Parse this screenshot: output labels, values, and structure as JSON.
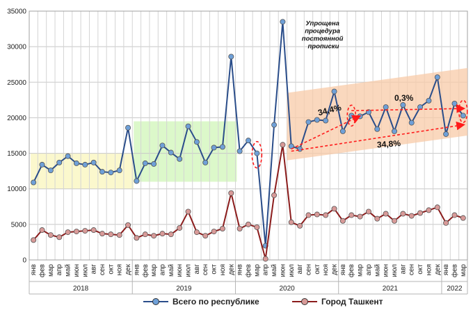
{
  "chart_data": {
    "type": "line",
    "title": "",
    "xlabel": "",
    "ylabel": "",
    "ylim": [
      0,
      35000
    ],
    "yticks": [
      0,
      5000,
      10000,
      15000,
      20000,
      25000,
      30000,
      35000
    ],
    "ytick_labels": [
      "0",
      "5000",
      "10000",
      "15000",
      "20000",
      "25000",
      "30000",
      "35000"
    ],
    "grid": true,
    "legend_position": "bottom-center",
    "categories": [
      "янв",
      "фев",
      "мар",
      "апр",
      "май",
      "июн",
      "июл",
      "авг",
      "сен",
      "окт",
      "ноя",
      "дек",
      "янв",
      "фев",
      "мар",
      "апр",
      "май",
      "июн",
      "июл",
      "авг",
      "сен",
      "окт",
      "ноя",
      "дек",
      "янв",
      "фев",
      "мар",
      "апр",
      "май",
      "июн",
      "июл",
      "авг",
      "сен",
      "окт",
      "ноя",
      "дек",
      "янв",
      "фев",
      "мар",
      "апр",
      "май",
      "июн",
      "июл",
      "авг",
      "сен",
      "окт",
      "ноя",
      "дек",
      "янв",
      "фев",
      "мар"
    ],
    "years": [
      {
        "label": "2018",
        "start": 0,
        "end": 11
      },
      {
        "label": "2019",
        "start": 12,
        "end": 23
      },
      {
        "label": "2020",
        "start": 24,
        "end": 35
      },
      {
        "label": "2021",
        "start": 36,
        "end": 47
      },
      {
        "label": "2022",
        "start": 48,
        "end": 50
      }
    ],
    "series": [
      {
        "name": "Всего по республике",
        "color": "#2a4d8a",
        "marker_color": "#6fa0d8",
        "values": [
          10900,
          13400,
          12600,
          13700,
          14600,
          13600,
          13400,
          13700,
          12400,
          12300,
          12600,
          18600,
          11100,
          13600,
          13500,
          16100,
          15100,
          14200,
          18800,
          16600,
          13700,
          15800,
          15900,
          28600,
          15300,
          16800,
          15000,
          2000,
          19000,
          33500,
          16000,
          15600,
          19400,
          19700,
          19600,
          23700,
          18100,
          20300,
          20200,
          20800,
          18400,
          21500,
          18100,
          21800,
          19300,
          21500,
          22400,
          25700,
          17700,
          22000,
          20300
        ]
      },
      {
        "name": "Город Ташкент",
        "color": "#8b1c1c",
        "marker_color": "#d89a98",
        "values": [
          2800,
          4200,
          3500,
          3200,
          3900,
          4000,
          4100,
          4200,
          3700,
          3600,
          3500,
          4900,
          3100,
          3600,
          3400,
          3700,
          3600,
          4500,
          6800,
          3900,
          3400,
          4000,
          4400,
          9400,
          4400,
          5000,
          4600,
          150,
          9100,
          16200,
          5300,
          4800,
          6300,
          6400,
          6300,
          7200,
          5500,
          6300,
          6100,
          6800,
          5800,
          6500,
          5500,
          6500,
          6200,
          6600,
          7000,
          7400,
          5200,
          6300,
          5900
        ]
      }
    ],
    "shaded_regions": [
      {
        "start": 0,
        "end": 12,
        "y0": 10000,
        "y1": 15000,
        "color": "#fbf7c8"
      },
      {
        "start": 12,
        "end": 24,
        "y0": 11000,
        "y1": 19500,
        "color": "#d8f7c4"
      }
    ],
    "trend_band": {
      "x0": 29.5,
      "x1": 50.5,
      "lower_start": 14000,
      "lower_end": 17500,
      "upper_start": 23500,
      "upper_end": 27000,
      "color": "#f8cba8"
    },
    "annotations": [
      {
        "text": "Упрощена процедура постоянной прописки",
        "lines": [
          "Упрощена",
          "процедура",
          "постоянной",
          "прописки"
        ],
        "x": 30.5,
        "y": 33000
      },
      {
        "text": "34,4%",
        "x": 33.2,
        "y": 20300
      },
      {
        "text": "0,3%",
        "x": 42.0,
        "y": 22400
      },
      {
        "text": "34,8%",
        "x": 40.0,
        "y": 15800
      }
    ]
  }
}
